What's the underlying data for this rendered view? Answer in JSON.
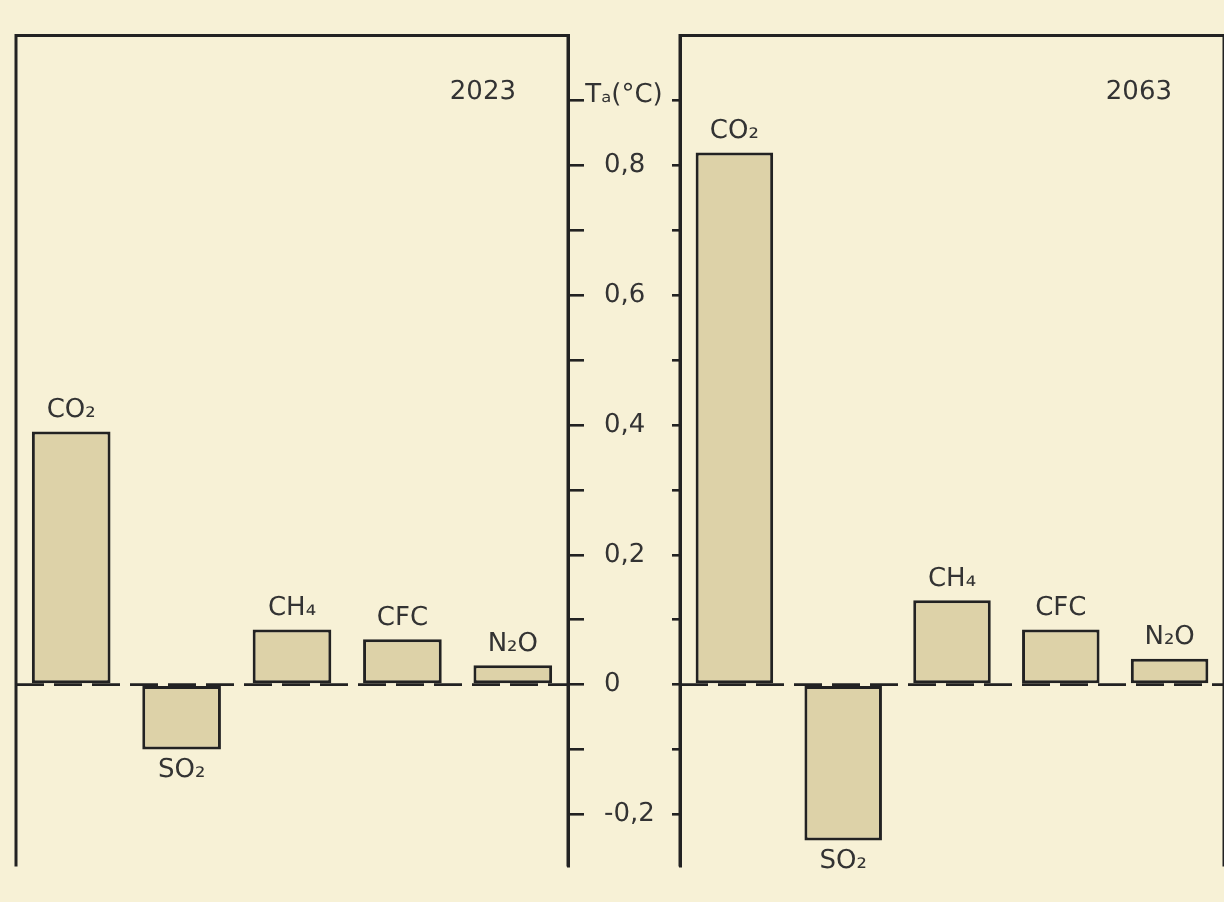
{
  "chart_data": [
    {
      "type": "bar",
      "title": "2023",
      "ylabel": "Tₐ(°C)",
      "categories": [
        "CO₂",
        "SO₂",
        "CH₄",
        "CFC",
        "N₂O"
      ],
      "values": [
        0.39,
        -0.1,
        0.085,
        0.07,
        0.03
      ],
      "color": "#ddd2a8",
      "ylim": [
        -0.28,
        1.0
      ],
      "yticks": [
        {
          "value": -0.2,
          "label": "-0,2"
        },
        {
          "value": -0.1,
          "label": null
        },
        0,
        {
          "value": 0.1,
          "label": null
        },
        {
          "value": 0.2,
          "label": "0,2"
        },
        {
          "value": 0.3,
          "label": null
        },
        {
          "value": 0.4,
          "label": "0,4"
        },
        {
          "value": 0.5,
          "label": null
        },
        {
          "value": 0.6,
          "label": "0,6"
        },
        {
          "value": 0.7,
          "label": null
        },
        {
          "value": 0.8,
          "label": "0,8"
        },
        {
          "value": 0.9,
          "label": null
        }
      ],
      "ref_lines": [
        {
          "axis": "y",
          "value": 0,
          "line_style": "dashed"
        }
      ],
      "tick_labels": "y",
      "legend": false,
      "grid": false
    },
    {
      "type": "bar",
      "title": "2063",
      "categories": [
        "CO₂",
        "SO₂",
        "CH₄",
        "CFC",
        "N₂O"
      ],
      "values": [
        0.82,
        -0.24,
        0.13,
        0.085,
        0.04
      ],
      "color": "#ddd2a8",
      "ylim": [
        -0.28,
        1.0
      ],
      "yticks": [
        {
          "value": -0.2,
          "label": null
        },
        {
          "value": -0.1,
          "label": null
        },
        {
          "value": 0,
          "label": null
        },
        {
          "value": 0.1,
          "label": null
        },
        {
          "value": 0.2,
          "label": null
        },
        {
          "value": 0.3,
          "label": null
        },
        {
          "value": 0.4,
          "label": null
        },
        {
          "value": 0.5,
          "label": null
        },
        {
          "value": 0.6,
          "label": null
        },
        {
          "value": 0.7,
          "label": null
        },
        {
          "value": 0.8,
          "label": null
        },
        {
          "value": 0.9,
          "label": null
        }
      ],
      "ref_lines": [
        {
          "axis": "y",
          "value": 0,
          "line_style": "dashed"
        }
      ],
      "tick_labels": false,
      "legend": false,
      "grid": false
    }
  ]
}
